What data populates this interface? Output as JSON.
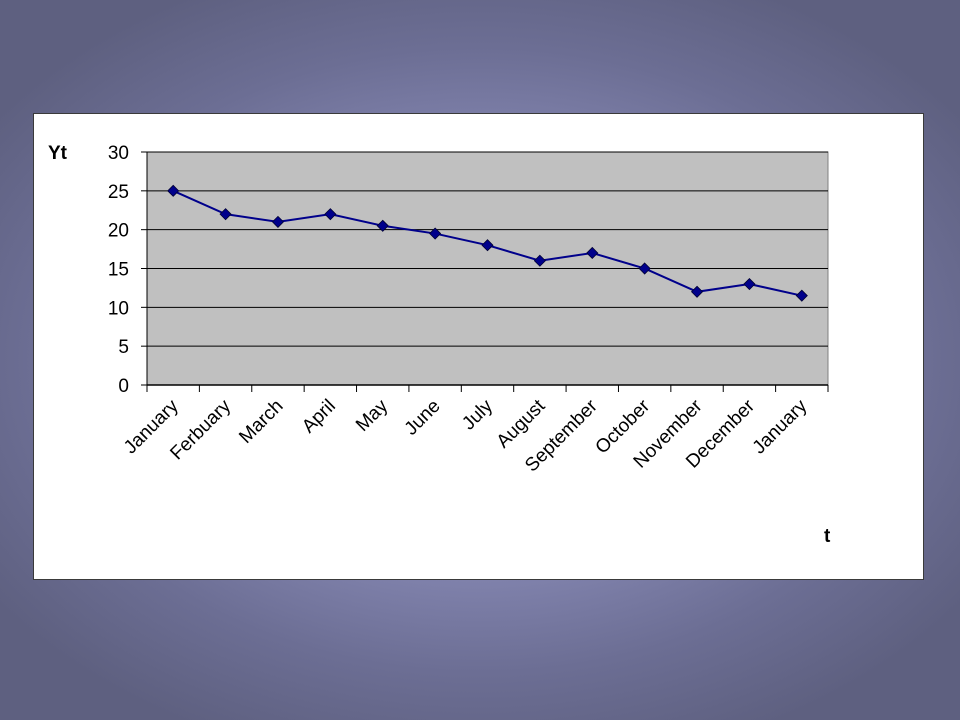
{
  "chart_data": {
    "type": "line",
    "ylabel": "Yt",
    "xlabel": "t",
    "categories": [
      "January",
      "Ferbuary",
      "March",
      "April",
      "May",
      "June",
      "July",
      "August",
      "September",
      "October",
      "November",
      "December",
      "January"
    ],
    "series": [
      {
        "values": [
          25,
          22,
          21,
          22,
          20.5,
          19.5,
          18,
          16,
          17,
          15,
          12,
          13,
          11.5
        ]
      }
    ],
    "ylim": [
      0,
      30
    ],
    "yticks": [
      "0",
      "5",
      "10",
      "15",
      "20",
      "25",
      "30"
    ],
    "grid": true,
    "legend": "none",
    "colors": {
      "line": "#00008b",
      "marker": "#00008b",
      "plot_bg": "#c0c0c0",
      "grid": "#000000"
    }
  }
}
